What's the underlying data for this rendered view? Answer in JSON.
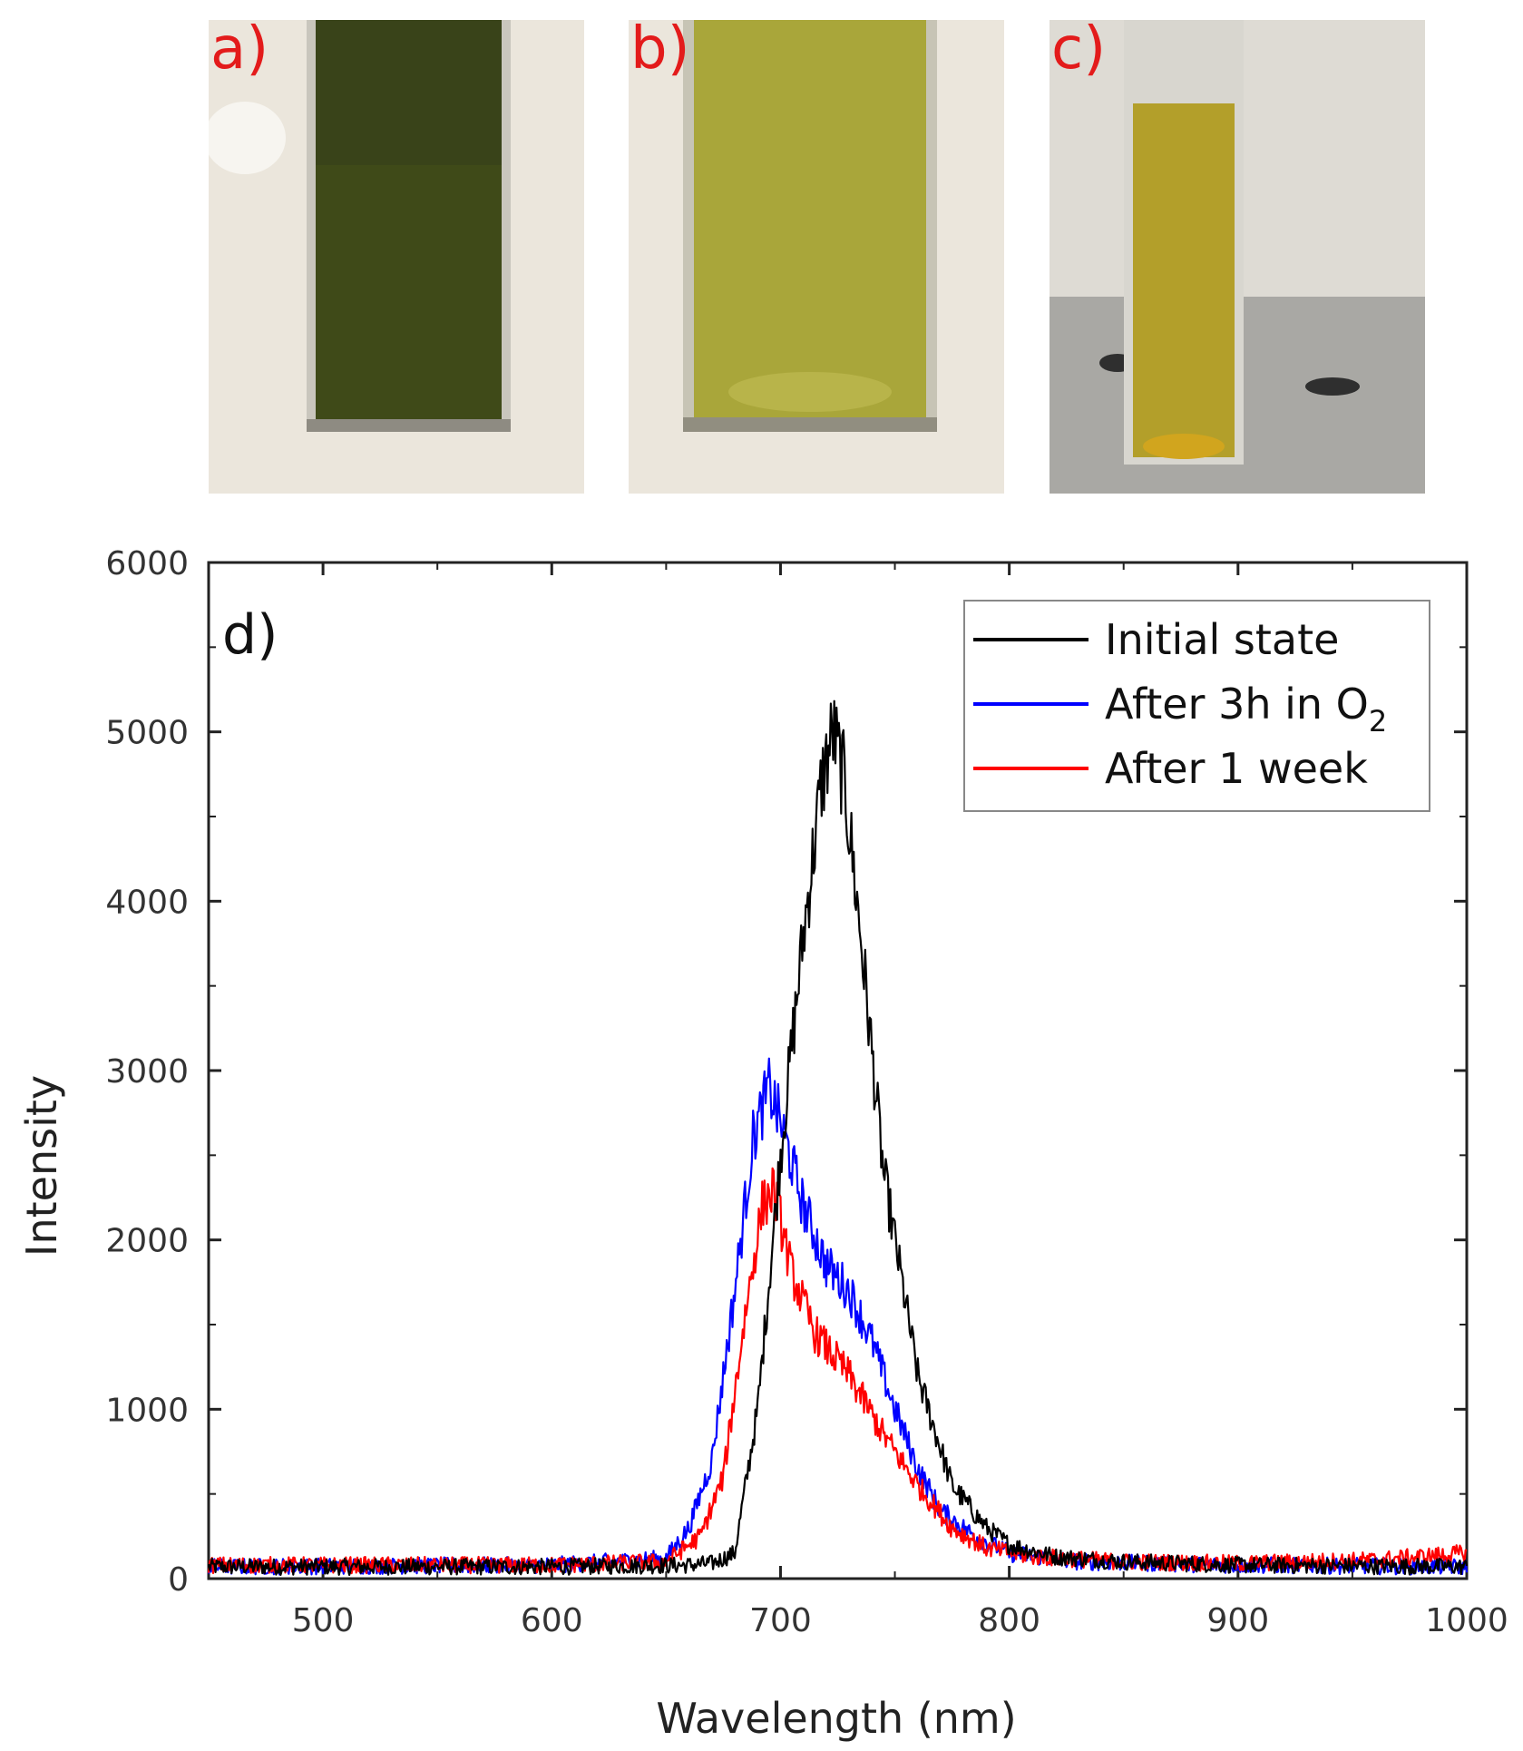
{
  "photos": [
    {
      "label": "a)",
      "liquid_color": "#3f4a18",
      "bg_color": "#ebe6dc"
    },
    {
      "label": "b)",
      "liquid_color": "#a9a63a",
      "bg_color": "#ebe6dc"
    },
    {
      "label": "c)",
      "liquid_color": "#b39f2a",
      "bg_color": "#d8d5cf"
    }
  ],
  "chart_data": {
    "type": "line",
    "panel_label": "d)",
    "xlabel": "Wavelength (nm)",
    "ylabel": "Intensity",
    "xlim": [
      450,
      1000
    ],
    "ylim": [
      0,
      6000
    ],
    "xticks": [
      500,
      600,
      700,
      800,
      900,
      1000
    ],
    "yticks": [
      0,
      1000,
      2000,
      3000,
      4000,
      5000,
      6000
    ],
    "legend_position": "top-right",
    "series": [
      {
        "name": "Initial state",
        "color": "#000000",
        "points": [
          [
            450,
            70
          ],
          [
            600,
            70
          ],
          [
            660,
            80
          ],
          [
            670,
            90
          ],
          [
            680,
            150
          ],
          [
            690,
            1000
          ],
          [
            700,
            2500
          ],
          [
            710,
            3800
          ],
          [
            718,
            4700
          ],
          [
            723,
            5000
          ],
          [
            728,
            4700
          ],
          [
            735,
            3800
          ],
          [
            745,
            2400
          ],
          [
            760,
            1200
          ],
          [
            775,
            550
          ],
          [
            790,
            300
          ],
          [
            800,
            200
          ],
          [
            820,
            130
          ],
          [
            850,
            100
          ],
          [
            900,
            80
          ],
          [
            1000,
            70
          ]
        ]
      },
      {
        "name": "After 3h in O",
        "name_sub": "2",
        "color": "#0000ff",
        "points": [
          [
            450,
            70
          ],
          [
            600,
            80
          ],
          [
            650,
            120
          ],
          [
            660,
            300
          ],
          [
            670,
            700
          ],
          [
            680,
            1700
          ],
          [
            688,
            2600
          ],
          [
            695,
            2900
          ],
          [
            700,
            2700
          ],
          [
            710,
            2200
          ],
          [
            720,
            1850
          ],
          [
            730,
            1700
          ],
          [
            740,
            1400
          ],
          [
            750,
            1000
          ],
          [
            760,
            650
          ],
          [
            770,
            400
          ],
          [
            785,
            250
          ],
          [
            800,
            150
          ],
          [
            830,
            100
          ],
          [
            900,
            80
          ],
          [
            1000,
            70
          ]
        ]
      },
      {
        "name": "After 1 week",
        "color": "#ff0000",
        "points": [
          [
            450,
            80
          ],
          [
            600,
            80
          ],
          [
            650,
            100
          ],
          [
            665,
            250
          ],
          [
            675,
            600
          ],
          [
            685,
            1600
          ],
          [
            692,
            2200
          ],
          [
            697,
            2300
          ],
          [
            705,
            1800
          ],
          [
            715,
            1450
          ],
          [
            730,
            1200
          ],
          [
            745,
            850
          ],
          [
            760,
            550
          ],
          [
            775,
            300
          ],
          [
            790,
            180
          ],
          [
            810,
            130
          ],
          [
            850,
            100
          ],
          [
            900,
            90
          ],
          [
            960,
            110
          ],
          [
            1000,
            150
          ]
        ]
      }
    ]
  }
}
